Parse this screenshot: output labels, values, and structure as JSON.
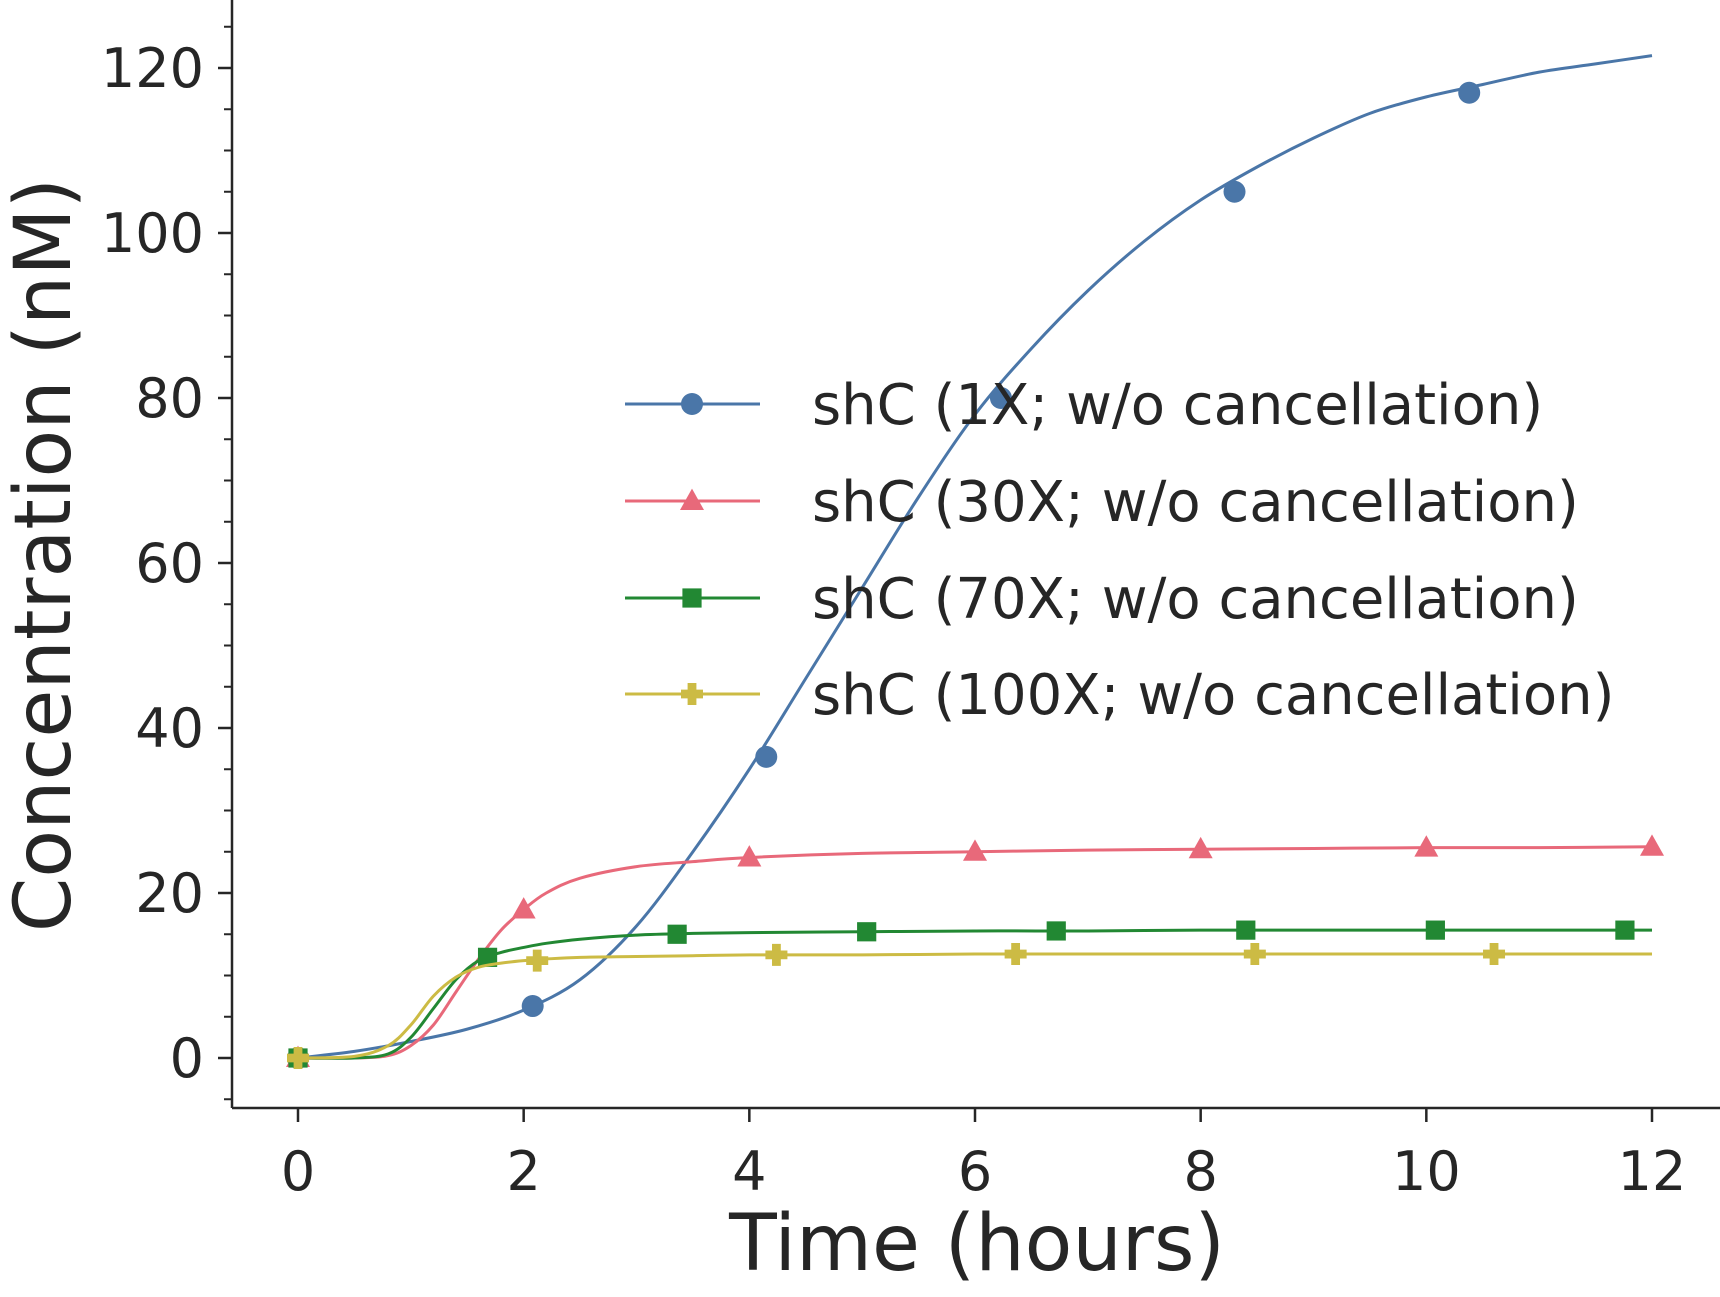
{
  "chart_data": {
    "type": "line",
    "title": "",
    "xlabel": "Time (hours)",
    "ylabel": "Concentration (nM)",
    "xlim": [
      -0.6,
      12.6
    ],
    "ylim": [
      -6,
      128
    ],
    "xticks": [
      "0",
      "2",
      "4",
      "6",
      "8",
      "10",
      "12"
    ],
    "yticks": [
      "0",
      "20",
      "40",
      "60",
      "80",
      "100",
      "120"
    ],
    "grid": false,
    "legend_position": "center-right",
    "series": [
      {
        "name": "shC (1X; w/o cancellation)",
        "color": "#4a76a8",
        "marker": "circle",
        "x": [
          0,
          0.5,
          1,
          1.5,
          2,
          2.5,
          3,
          3.5,
          4,
          4.5,
          5,
          5.5,
          6,
          6.5,
          7,
          7.5,
          8,
          8.5,
          9,
          9.5,
          10,
          10.5,
          11,
          11.5,
          12
        ],
        "y": [
          0,
          0.8,
          2,
          3.5,
          5.8,
          9.5,
          16,
          25,
          35,
          46,
          57,
          68,
          78,
          86,
          93,
          99,
          104,
          108,
          111.5,
          114.5,
          116.5,
          118,
          119.5,
          120.5,
          121.5
        ],
        "markers": [
          [
            0,
            0
          ],
          [
            2.08,
            6.3
          ],
          [
            4.15,
            36.5
          ],
          [
            6.23,
            80
          ],
          [
            8.3,
            105
          ],
          [
            10.38,
            117
          ]
        ]
      },
      {
        "name": "shC (30X; w/o cancellation)",
        "color": "#e8697a",
        "marker": "triangle",
        "x": [
          0,
          0.5,
          0.8,
          1,
          1.2,
          1.4,
          1.6,
          1.8,
          2,
          2.2,
          2.5,
          3,
          3.5,
          4,
          5,
          6,
          7,
          8,
          9,
          10,
          11,
          12
        ],
        "y": [
          0,
          0,
          0.3,
          1.5,
          4,
          8,
          12,
          15.5,
          18,
          20,
          21.8,
          23.2,
          23.8,
          24.3,
          24.8,
          25,
          25.2,
          25.3,
          25.4,
          25.5,
          25.5,
          25.6
        ],
        "markers": [
          [
            0,
            0
          ],
          [
            2,
            18
          ],
          [
            4,
            24.3
          ],
          [
            6,
            25
          ],
          [
            8,
            25.3
          ],
          [
            10,
            25.5
          ],
          [
            12,
            25.6
          ]
        ]
      },
      {
        "name": "shC (70X; w/o cancellation)",
        "color": "#228833",
        "marker": "square",
        "x": [
          0,
          0.5,
          0.8,
          1,
          1.2,
          1.4,
          1.6,
          1.8,
          2,
          2.2,
          2.5,
          3,
          3.5,
          4,
          5,
          6,
          7,
          8,
          9,
          10,
          11,
          12
        ],
        "y": [
          0,
          0,
          0.5,
          2.5,
          6,
          9.5,
          11.8,
          12.8,
          13.4,
          13.9,
          14.4,
          14.9,
          15.1,
          15.2,
          15.3,
          15.4,
          15.4,
          15.5,
          15.5,
          15.5,
          15.5,
          15.5
        ],
        "markers": [
          [
            0,
            0
          ],
          [
            1.68,
            12.2
          ],
          [
            3.36,
            15
          ],
          [
            5.04,
            15.3
          ],
          [
            6.72,
            15.4
          ],
          [
            8.4,
            15.5
          ],
          [
            10.08,
            15.5
          ],
          [
            11.76,
            15.5
          ]
        ]
      },
      {
        "name": "shC (100X; w/o cancellation)",
        "color": "#ccbb44",
        "marker": "plus",
        "x": [
          0,
          0.5,
          0.8,
          1,
          1.2,
          1.4,
          1.6,
          1.8,
          2,
          2.2,
          2.5,
          3,
          3.5,
          4,
          5,
          6,
          7,
          8,
          9,
          10,
          11,
          12
        ],
        "y": [
          0,
          0.2,
          1.5,
          4,
          7.5,
          9.8,
          11,
          11.5,
          11.8,
          12,
          12.2,
          12.3,
          12.4,
          12.5,
          12.5,
          12.6,
          12.6,
          12.6,
          12.6,
          12.6,
          12.6,
          12.6
        ],
        "markers": [
          [
            0,
            0
          ],
          [
            2.12,
            11.8
          ],
          [
            4.24,
            12.5
          ],
          [
            6.36,
            12.6
          ],
          [
            8.48,
            12.6
          ],
          [
            10.6,
            12.6
          ]
        ]
      }
    ]
  }
}
